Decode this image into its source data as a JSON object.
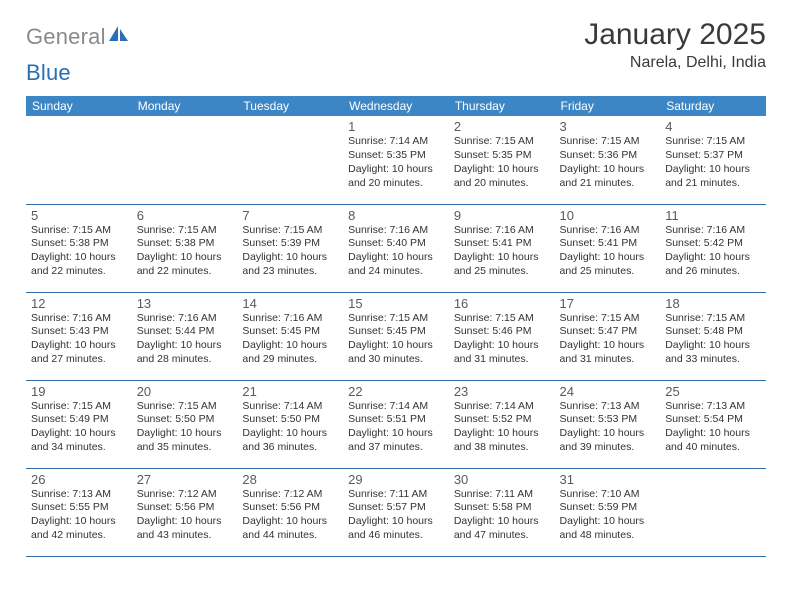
{
  "logo": {
    "part1": "General",
    "part2": "Blue"
  },
  "title": "January 2025",
  "location": "Narela, Delhi, India",
  "colors": {
    "header_bg": "#3d86c6",
    "header_text": "#ffffff",
    "rule": "#2f6ca8",
    "body_text": "#333333",
    "daynum": "#5a5a5a",
    "logo_gray": "#8a8a8a",
    "logo_blue": "#2a6fb5"
  },
  "day_headers": [
    "Sunday",
    "Monday",
    "Tuesday",
    "Wednesday",
    "Thursday",
    "Friday",
    "Saturday"
  ],
  "weeks": [
    [
      null,
      null,
      null,
      {
        "n": "1",
        "sr": "7:14 AM",
        "ss": "5:35 PM",
        "dl": "10 hours and 20 minutes."
      },
      {
        "n": "2",
        "sr": "7:15 AM",
        "ss": "5:35 PM",
        "dl": "10 hours and 20 minutes."
      },
      {
        "n": "3",
        "sr": "7:15 AM",
        "ss": "5:36 PM",
        "dl": "10 hours and 21 minutes."
      },
      {
        "n": "4",
        "sr": "7:15 AM",
        "ss": "5:37 PM",
        "dl": "10 hours and 21 minutes."
      }
    ],
    [
      {
        "n": "5",
        "sr": "7:15 AM",
        "ss": "5:38 PM",
        "dl": "10 hours and 22 minutes."
      },
      {
        "n": "6",
        "sr": "7:15 AM",
        "ss": "5:38 PM",
        "dl": "10 hours and 22 minutes."
      },
      {
        "n": "7",
        "sr": "7:15 AM",
        "ss": "5:39 PM",
        "dl": "10 hours and 23 minutes."
      },
      {
        "n": "8",
        "sr": "7:16 AM",
        "ss": "5:40 PM",
        "dl": "10 hours and 24 minutes."
      },
      {
        "n": "9",
        "sr": "7:16 AM",
        "ss": "5:41 PM",
        "dl": "10 hours and 25 minutes."
      },
      {
        "n": "10",
        "sr": "7:16 AM",
        "ss": "5:41 PM",
        "dl": "10 hours and 25 minutes."
      },
      {
        "n": "11",
        "sr": "7:16 AM",
        "ss": "5:42 PM",
        "dl": "10 hours and 26 minutes."
      }
    ],
    [
      {
        "n": "12",
        "sr": "7:16 AM",
        "ss": "5:43 PM",
        "dl": "10 hours and 27 minutes."
      },
      {
        "n": "13",
        "sr": "7:16 AM",
        "ss": "5:44 PM",
        "dl": "10 hours and 28 minutes."
      },
      {
        "n": "14",
        "sr": "7:16 AM",
        "ss": "5:45 PM",
        "dl": "10 hours and 29 minutes."
      },
      {
        "n": "15",
        "sr": "7:15 AM",
        "ss": "5:45 PM",
        "dl": "10 hours and 30 minutes."
      },
      {
        "n": "16",
        "sr": "7:15 AM",
        "ss": "5:46 PM",
        "dl": "10 hours and 31 minutes."
      },
      {
        "n": "17",
        "sr": "7:15 AM",
        "ss": "5:47 PM",
        "dl": "10 hours and 31 minutes."
      },
      {
        "n": "18",
        "sr": "7:15 AM",
        "ss": "5:48 PM",
        "dl": "10 hours and 33 minutes."
      }
    ],
    [
      {
        "n": "19",
        "sr": "7:15 AM",
        "ss": "5:49 PM",
        "dl": "10 hours and 34 minutes."
      },
      {
        "n": "20",
        "sr": "7:15 AM",
        "ss": "5:50 PM",
        "dl": "10 hours and 35 minutes."
      },
      {
        "n": "21",
        "sr": "7:14 AM",
        "ss": "5:50 PM",
        "dl": "10 hours and 36 minutes."
      },
      {
        "n": "22",
        "sr": "7:14 AM",
        "ss": "5:51 PM",
        "dl": "10 hours and 37 minutes."
      },
      {
        "n": "23",
        "sr": "7:14 AM",
        "ss": "5:52 PM",
        "dl": "10 hours and 38 minutes."
      },
      {
        "n": "24",
        "sr": "7:13 AM",
        "ss": "5:53 PM",
        "dl": "10 hours and 39 minutes."
      },
      {
        "n": "25",
        "sr": "7:13 AM",
        "ss": "5:54 PM",
        "dl": "10 hours and 40 minutes."
      }
    ],
    [
      {
        "n": "26",
        "sr": "7:13 AM",
        "ss": "5:55 PM",
        "dl": "10 hours and 42 minutes."
      },
      {
        "n": "27",
        "sr": "7:12 AM",
        "ss": "5:56 PM",
        "dl": "10 hours and 43 minutes."
      },
      {
        "n": "28",
        "sr": "7:12 AM",
        "ss": "5:56 PM",
        "dl": "10 hours and 44 minutes."
      },
      {
        "n": "29",
        "sr": "7:11 AM",
        "ss": "5:57 PM",
        "dl": "10 hours and 46 minutes."
      },
      {
        "n": "30",
        "sr": "7:11 AM",
        "ss": "5:58 PM",
        "dl": "10 hours and 47 minutes."
      },
      {
        "n": "31",
        "sr": "7:10 AM",
        "ss": "5:59 PM",
        "dl": "10 hours and 48 minutes."
      },
      null
    ]
  ],
  "labels": {
    "sunrise": "Sunrise:",
    "sunset": "Sunset:",
    "daylight": "Daylight:"
  }
}
